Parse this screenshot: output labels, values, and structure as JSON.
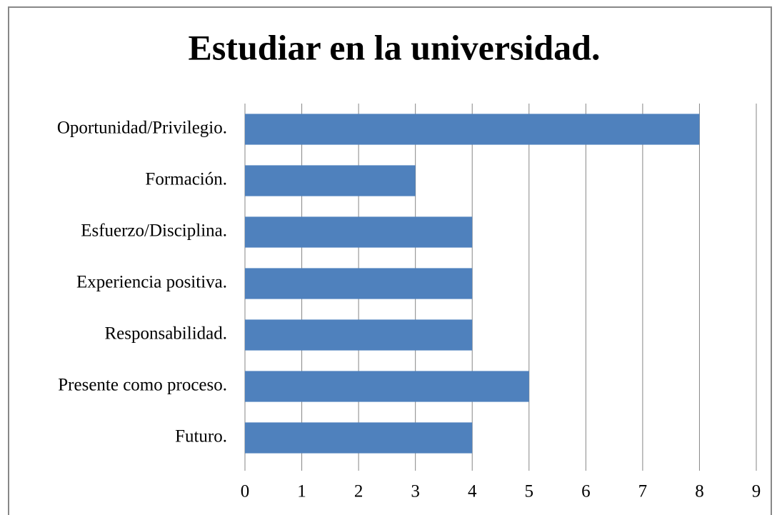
{
  "chart_data": {
    "type": "bar",
    "orientation": "horizontal",
    "title": "Estudiar en la universidad.",
    "categories": [
      "Oportunidad/Privilegio.",
      "Formación.",
      "Esfuerzo/Disciplina.",
      "Experiencia positiva.",
      "Responsabilidad.",
      "Presente como proceso.",
      "Futuro."
    ],
    "values": [
      8,
      3,
      4,
      4,
      4,
      5,
      4
    ],
    "color": "#4f81bd",
    "xlim": [
      0,
      9
    ],
    "xticks": [
      0,
      1,
      2,
      3,
      4,
      5,
      6,
      7,
      8,
      9
    ],
    "grid": true
  }
}
